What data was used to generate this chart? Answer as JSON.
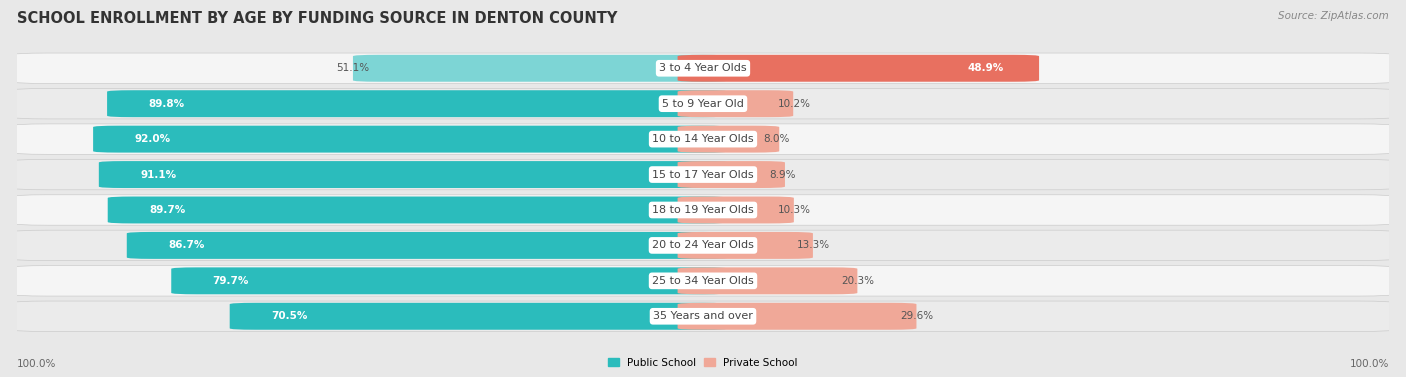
{
  "title": "SCHOOL ENROLLMENT BY AGE BY FUNDING SOURCE IN DENTON COUNTY",
  "source": "Source: ZipAtlas.com",
  "categories": [
    "3 to 4 Year Olds",
    "5 to 9 Year Old",
    "10 to 14 Year Olds",
    "15 to 17 Year Olds",
    "18 to 19 Year Olds",
    "20 to 24 Year Olds",
    "25 to 34 Year Olds",
    "35 Years and over"
  ],
  "public_pct": [
    51.1,
    89.8,
    92.0,
    91.1,
    89.7,
    86.7,
    79.7,
    70.5
  ],
  "private_pct": [
    48.9,
    10.2,
    8.0,
    8.9,
    10.3,
    13.3,
    20.3,
    29.6
  ],
  "public_color_dark": "#2BBCBC",
  "public_color_light": "#7DD5D5",
  "private_color_dark": "#E87060",
  "private_color_light": "#F0A898",
  "public_label": "Public School",
  "private_label": "Private School",
  "background_color": "#e8e8e8",
  "row_bg_colors": [
    "#f5f5f5",
    "#ebebeb"
  ],
  "axis_label_left": "100.0%",
  "axis_label_right": "100.0%",
  "title_fontsize": 10.5,
  "cat_fontsize": 8,
  "bar_label_fontsize": 7.5,
  "source_fontsize": 7.5
}
